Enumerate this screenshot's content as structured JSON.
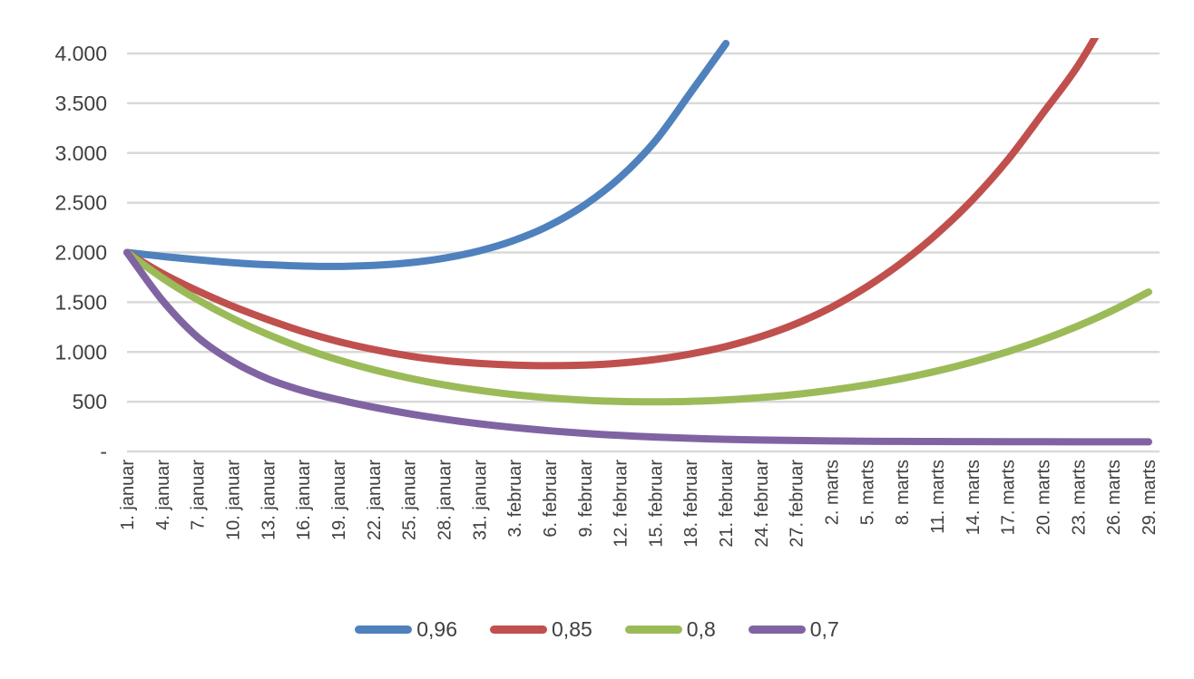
{
  "chart_data": {
    "type": "line",
    "title": "",
    "xlabel": "",
    "ylabel": "",
    "x_categories": [
      "1. januar",
      "4. januar",
      "7. januar",
      "10. januar",
      "13. januar",
      "16. januar",
      "19. januar",
      "22. januar",
      "25. januar",
      "28. januar",
      "31. januar",
      "3. februar",
      "6. februar",
      "9. februar",
      "12. februar",
      "15. februar",
      "18. februar",
      "21. februar",
      "24. februar",
      "27. februar",
      "2. marts",
      "5. marts",
      "8. marts",
      "11. marts",
      "14. marts",
      "17. marts",
      "20. marts",
      "23. marts",
      "26. marts",
      "29. marts"
    ],
    "y_axis": {
      "min": 0,
      "max": 4000,
      "tick_step": 500,
      "tick_labels": [
        "-",
        "500",
        "1.000",
        "1.500",
        "2.000",
        "2.500",
        "3.000",
        "3.500",
        "4.000"
      ]
    },
    "grid": "horizontal",
    "legend_position": "bottom",
    "background": "#FFFFFF",
    "gridline_color": "#D9D9D9",
    "label_color": "#404040",
    "series": [
      {
        "name": "0,96",
        "color": "#4F81BD",
        "values": [
          2000,
          1961,
          1927,
          1898,
          1877,
          1863,
          1860,
          1870,
          1896,
          1943,
          2016,
          2123,
          2273,
          2479,
          2755,
          3123,
          3607,
          4100,
          null,
          null,
          null,
          null,
          null,
          null,
          null,
          null,
          null,
          null,
          null,
          null
        ]
      },
      {
        "name": "0,85",
        "color": "#C0504D",
        "values": [
          2000,
          1790,
          1615,
          1460,
          1325,
          1205,
          1105,
          1025,
          960,
          915,
          885,
          868,
          862,
          868,
          888,
          925,
          980,
          1055,
          1155,
          1285,
          1450,
          1655,
          1900,
          2190,
          2530,
          2930,
          3400,
          3880,
          4480,
          null
        ]
      },
      {
        "name": "0,8",
        "color": "#9BBB59",
        "values": [
          2000,
          1745,
          1526,
          1337,
          1176,
          1037,
          920,
          821,
          738,
          669,
          614,
          570,
          538,
          515,
          502,
          499,
          504,
          518,
          542,
          574,
          617,
          669,
          733,
          809,
          899,
          1003,
          1123,
          1262,
          1421,
          1603
        ]
      },
      {
        "name": "0,7",
        "color": "#8064A2",
        "values": [
          2000,
          1520,
          1150,
          905,
          730,
          610,
          520,
          445,
          380,
          325,
          278,
          240,
          208,
          182,
          161,
          145,
          132,
          122,
          115,
          110,
          106,
          103,
          101,
          100,
          99,
          98,
          98,
          97,
          97,
          97
        ]
      }
    ]
  }
}
